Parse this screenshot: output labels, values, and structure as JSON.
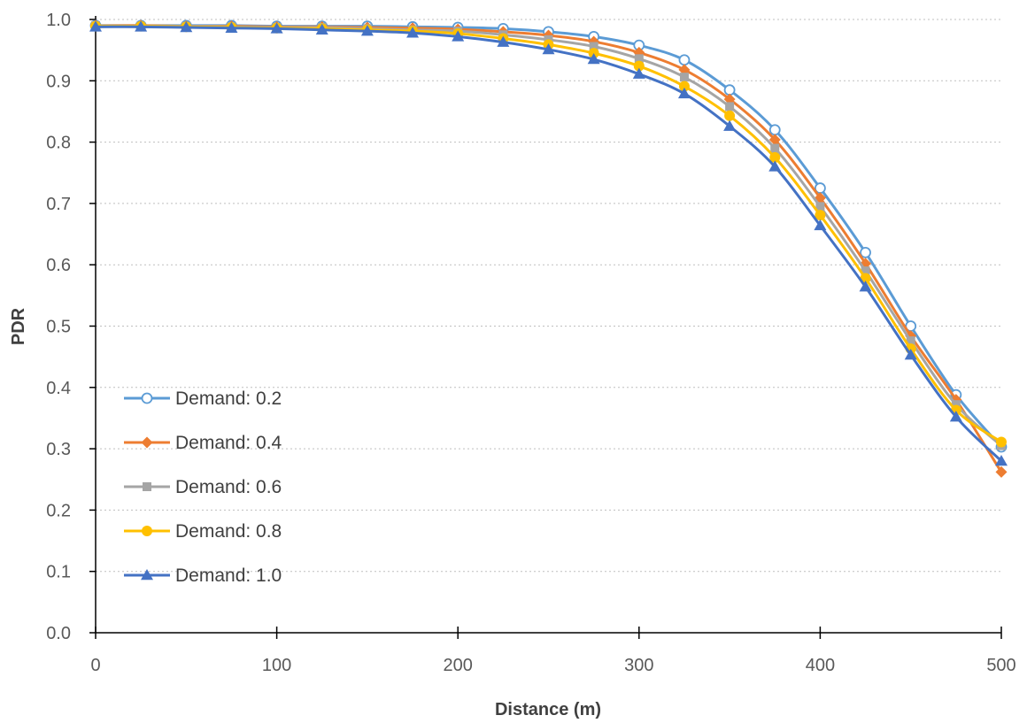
{
  "chart_data": {
    "type": "line",
    "title": "",
    "xlabel": "Distance (m)",
    "ylabel": "PDR",
    "xlim": [
      0,
      500
    ],
    "ylim": [
      0,
      1.0
    ],
    "x_ticks": [
      0,
      100,
      200,
      300,
      400,
      500
    ],
    "x_tick_labels": [
      "0",
      "100",
      "200",
      "300",
      "400",
      "500"
    ],
    "y_ticks": [
      0,
      0.1,
      0.2,
      0.3,
      0.4,
      0.5,
      0.6,
      0.7,
      0.8,
      0.9,
      1.0
    ],
    "y_tick_labels": [
      "0.0",
      "0.1",
      "0.2",
      "0.3",
      "0.4",
      "0.5",
      "0.6",
      "0.7",
      "0.8",
      "0.9",
      "1.0"
    ],
    "grid": "horizontal-dotted",
    "legend_position": "center-left",
    "x": [
      0,
      25,
      50,
      75,
      100,
      125,
      150,
      175,
      200,
      225,
      250,
      275,
      300,
      325,
      350,
      375,
      400,
      425,
      450,
      475,
      500
    ],
    "series": [
      {
        "name": "Demand: 0.2",
        "color": "#5B9BD5",
        "marker": "circle-open",
        "values": [
          0.99,
          0.99,
          0.99,
          0.99,
          0.989,
          0.989,
          0.989,
          0.988,
          0.987,
          0.985,
          0.98,
          0.972,
          0.958,
          0.934,
          0.885,
          0.82,
          0.725,
          0.62,
          0.5,
          0.388,
          0.303
        ]
      },
      {
        "name": "Demand: 0.4",
        "color": "#ED7D31",
        "marker": "diamond",
        "values": [
          0.99,
          0.99,
          0.989,
          0.989,
          0.988,
          0.988,
          0.987,
          0.986,
          0.984,
          0.98,
          0.974,
          0.964,
          0.946,
          0.918,
          0.87,
          0.804,
          0.709,
          0.602,
          0.484,
          0.38,
          0.262
        ]
      },
      {
        "name": "Demand: 0.6",
        "color": "#A5A5A5",
        "marker": "square",
        "values": [
          0.99,
          0.989,
          0.989,
          0.988,
          0.987,
          0.987,
          0.985,
          0.983,
          0.981,
          0.975,
          0.967,
          0.956,
          0.936,
          0.906,
          0.858,
          0.79,
          0.695,
          0.59,
          0.476,
          0.372,
          0.305
        ]
      },
      {
        "name": "Demand: 0.8",
        "color": "#FFC000",
        "marker": "circle",
        "values": [
          0.989,
          0.989,
          0.988,
          0.987,
          0.986,
          0.985,
          0.983,
          0.981,
          0.977,
          0.969,
          0.959,
          0.945,
          0.924,
          0.891,
          0.843,
          0.775,
          0.681,
          0.578,
          0.463,
          0.363,
          0.311
        ]
      },
      {
        "name": "Demand: 1.0",
        "color": "#4472C4",
        "marker": "triangle",
        "values": [
          0.988,
          0.988,
          0.987,
          0.986,
          0.985,
          0.983,
          0.981,
          0.978,
          0.972,
          0.963,
          0.951,
          0.935,
          0.911,
          0.879,
          0.826,
          0.76,
          0.664,
          0.564,
          0.453,
          0.352,
          0.28
        ]
      }
    ]
  }
}
